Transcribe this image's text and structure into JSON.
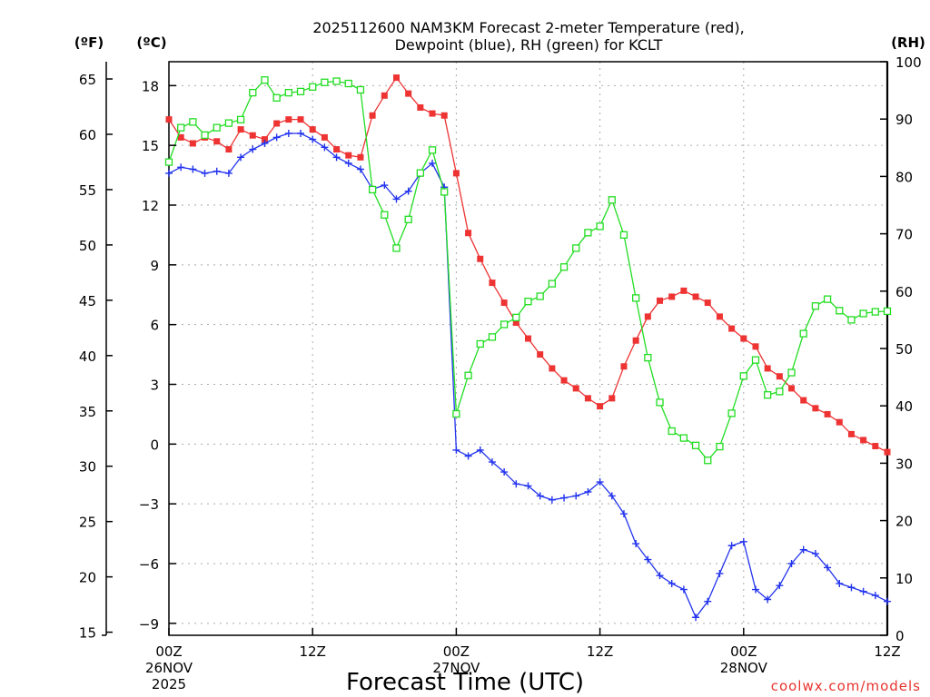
{
  "chart_data": {
    "type": "line",
    "title_line1": "2025112600 NAM3KM Forecast 2-meter Temperature (red),",
    "title_line2": "Dewpoint (blue), RH (green) for KCLT",
    "xlabel": "Forecast Time (UTC)",
    "credit": "coolwx.com/models",
    "units": {
      "fahrenheit": "(ºF)",
      "celsius": "(ºC)",
      "rh": "(RH)"
    },
    "x_range_hours": [
      0,
      60
    ],
    "c_range": [
      -9.6,
      19.2
    ],
    "rh_range": [
      0,
      100
    ],
    "x_ticks": [
      {
        "hour": 0,
        "lines": [
          "00Z",
          "26NOV",
          "2025"
        ]
      },
      {
        "hour": 12,
        "lines": [
          "12Z"
        ]
      },
      {
        "hour": 24,
        "lines": [
          "00Z",
          "27NOV"
        ]
      },
      {
        "hour": 36,
        "lines": [
          "12Z"
        ]
      },
      {
        "hour": 48,
        "lines": [
          "00Z",
          "28NOV"
        ]
      },
      {
        "hour": 60,
        "lines": [
          "12Z"
        ]
      }
    ],
    "c_ticks": [
      18,
      15,
      12,
      9,
      6,
      3,
      0,
      -3,
      -6,
      -9
    ],
    "c_tick_labels": [
      "18",
      "15",
      "12",
      "9",
      "6",
      "3",
      "0",
      "−3",
      "−6",
      "−9"
    ],
    "f_ticks": [
      65,
      60,
      55,
      50,
      45,
      40,
      35,
      30,
      25,
      20,
      15
    ],
    "f_tick_labels": [
      "65",
      "60",
      "55",
      "50",
      "45",
      "40",
      "35",
      "30",
      "25",
      "20",
      "15"
    ],
    "rh_ticks": [
      100,
      90,
      80,
      70,
      60,
      50,
      40,
      30,
      20,
      10,
      0
    ],
    "rh_tick_labels": [
      "100",
      "90",
      "80",
      "70",
      "60",
      "50",
      "40",
      "30",
      "20",
      "10",
      "0"
    ],
    "colors": {
      "temperature": "#ee3333",
      "dewpoint": "#2233ee",
      "rh": "#22dd22",
      "grid": "#aaaaaa"
    },
    "series": [
      {
        "name": "Temperature",
        "unit": "C",
        "color": "#ee3333",
        "marker": "filled-square",
        "values": [
          16.3,
          15.4,
          15.1,
          15.4,
          15.2,
          14.8,
          15.8,
          15.5,
          15.3,
          16.1,
          16.3,
          16.3,
          15.8,
          15.4,
          14.8,
          14.5,
          14.4,
          16.5,
          17.5,
          18.4,
          17.6,
          16.9,
          16.6,
          16.5,
          13.6,
          10.6,
          9.3,
          8.1,
          7.1,
          6.1,
          5.3,
          4.5,
          3.8,
          3.2,
          2.8,
          2.3,
          1.9,
          2.3,
          3.9,
          5.2,
          6.4,
          7.2,
          7.4,
          7.7,
          7.4,
          7.1,
          6.4,
          5.8,
          5.3,
          4.9,
          3.8,
          3.4,
          2.8,
          2.2,
          1.8,
          1.5,
          1.1,
          0.5,
          0.2,
          -0.1,
          -0.4
        ]
      },
      {
        "name": "Dewpoint",
        "unit": "C",
        "color": "#2233ee",
        "marker": "plus",
        "values": [
          13.6,
          13.9,
          13.8,
          13.6,
          13.7,
          13.6,
          14.4,
          14.8,
          15.1,
          15.4,
          15.6,
          15.6,
          15.3,
          14.9,
          14.4,
          14.1,
          13.8,
          12.8,
          13.0,
          12.3,
          12.7,
          13.6,
          14.1,
          12.9,
          -0.3,
          -0.6,
          -0.3,
          -0.9,
          -1.4,
          -2.0,
          -2.1,
          -2.6,
          -2.8,
          -2.7,
          -2.6,
          -2.4,
          -1.9,
          -2.6,
          -3.5,
          -5.0,
          -5.8,
          -6.6,
          -7.0,
          -7.3,
          -8.7,
          -7.9,
          -6.5,
          -5.1,
          -4.9,
          -7.3,
          -7.8,
          -7.1,
          -6.0,
          -5.3,
          -5.5,
          -6.2,
          -7.0,
          -7.2,
          -7.4,
          -7.6,
          -7.9
        ]
      },
      {
        "name": "RH",
        "unit": "percent",
        "color": "#22dd22",
        "marker": "open-square",
        "values": [
          82.5,
          88.5,
          89.5,
          87.2,
          88.5,
          89.3,
          89.9,
          94.6,
          96.8,
          93.7,
          94.6,
          94.8,
          95.6,
          96.4,
          96.6,
          96.2,
          95.1,
          77.7,
          73.3,
          67.5,
          72.5,
          80.6,
          84.6,
          77.3,
          38.6,
          45.3,
          50.8,
          52.0,
          54.2,
          55.4,
          58.2,
          59.1,
          61.3,
          64.2,
          67.5,
          70.2,
          71.3,
          75.9,
          69.8,
          58.8,
          48.4,
          40.6,
          35.6,
          34.4,
          33.1,
          30.5,
          32.9,
          38.7,
          45.2,
          48.0,
          41.9,
          42.5,
          45.8,
          52.6,
          57.4,
          58.6,
          56.6,
          55.0,
          56.1,
          56.4,
          56.5
        ]
      }
    ]
  }
}
